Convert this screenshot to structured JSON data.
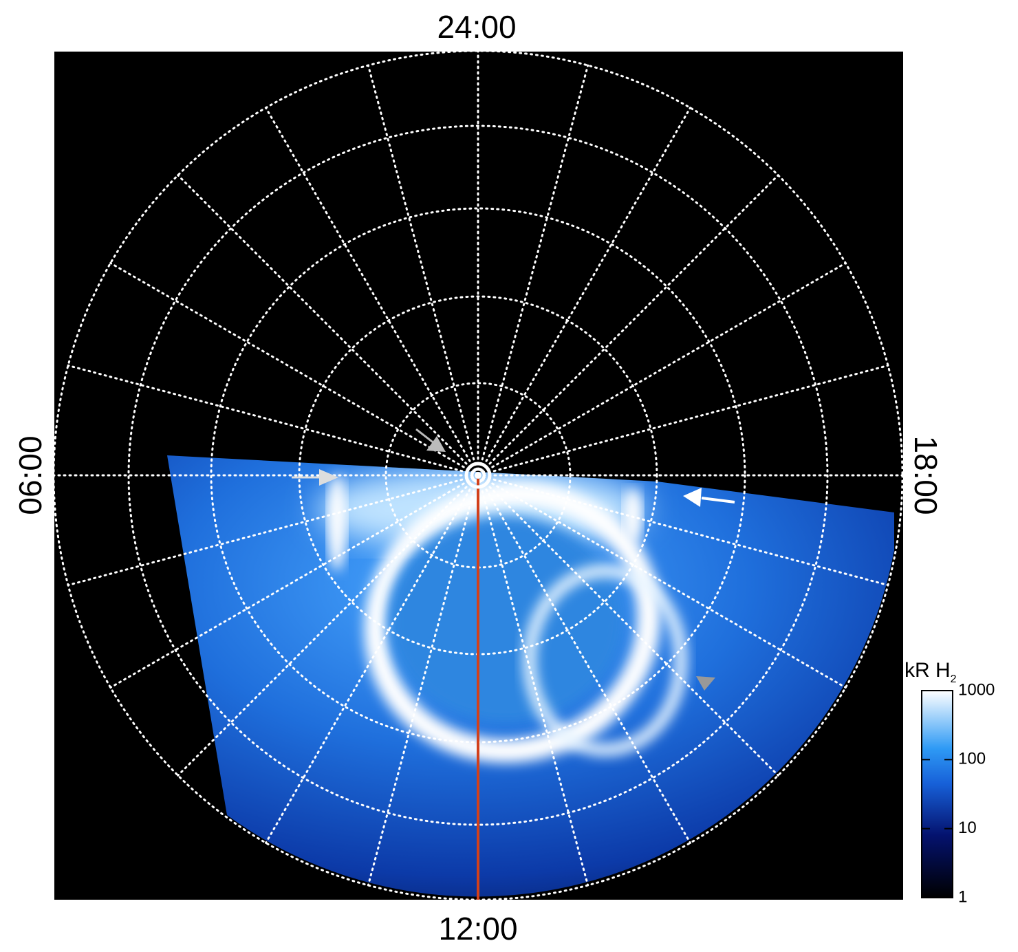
{
  "labels": {
    "top": "24:00",
    "bottom": "12:00",
    "left": "06:00",
    "right": "18:00"
  },
  "colorbar": {
    "title": "kR H",
    "title_subscript": "2",
    "scale": "log",
    "lim": [
      1,
      1000
    ],
    "ticks": [
      1,
      10,
      100,
      1000
    ]
  }
}
